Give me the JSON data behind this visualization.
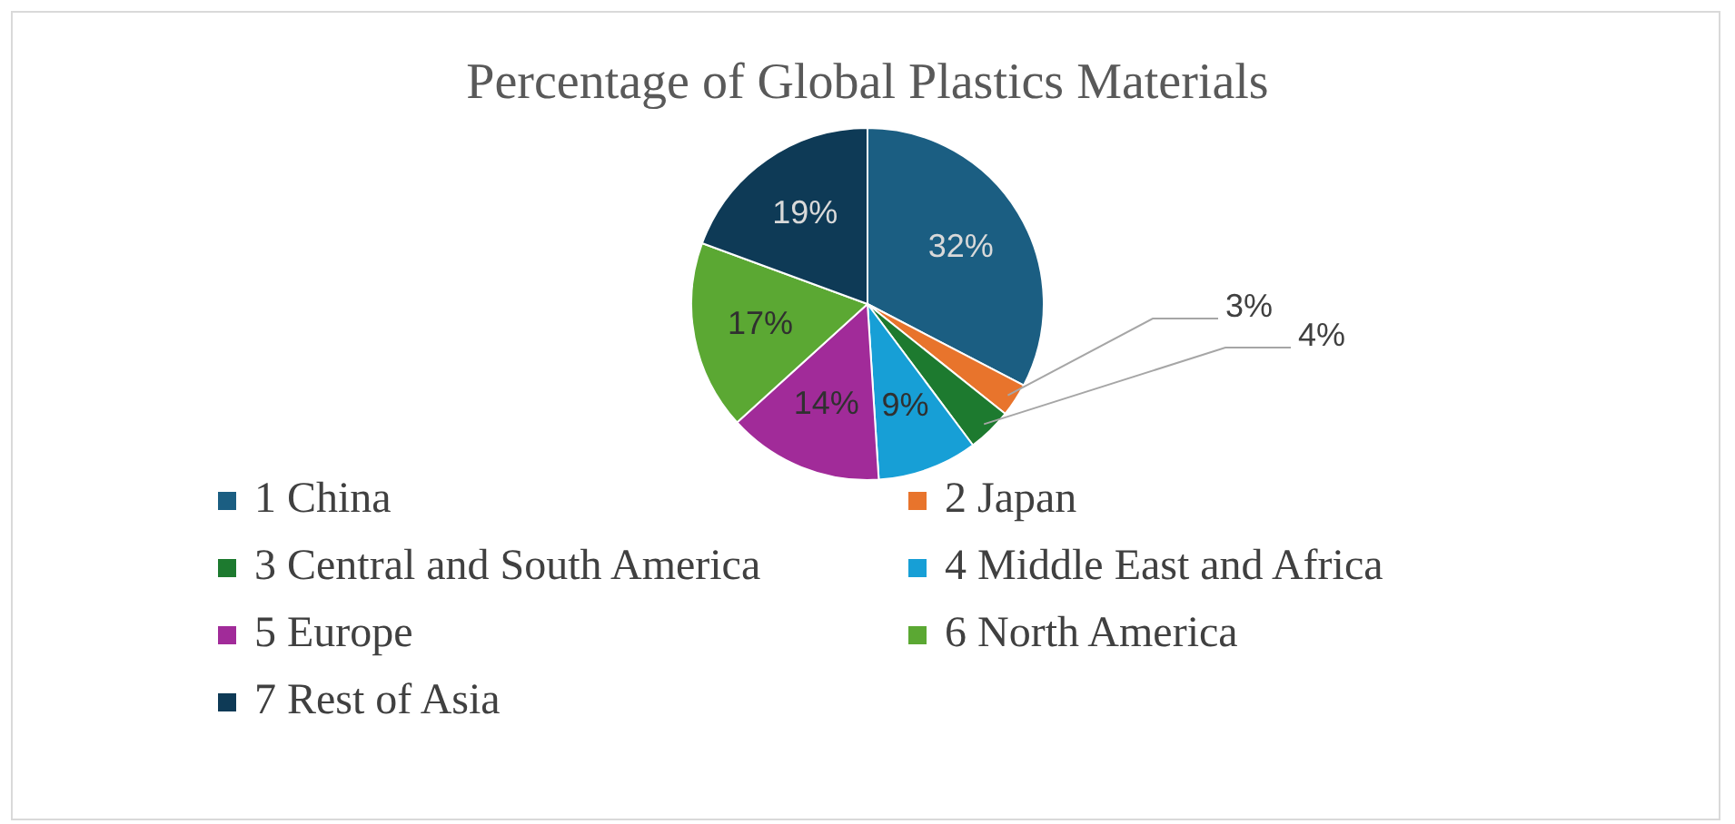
{
  "chart_data": {
    "type": "pie",
    "title": "Percentage of Global Plastics Materials",
    "categories": [
      "1 China",
      "2 Japan",
      "3 Central and South America",
      "4 Middle East and Africa",
      "5 Europe",
      "6 North America",
      "7 Rest of Asia"
    ],
    "values": [
      32,
      3,
      4,
      9,
      14,
      17,
      19
    ],
    "colors": [
      "#1b5e82",
      "#e8742c",
      "#1d7a2f",
      "#179fd6",
      "#a12b99",
      "#5ba833",
      "#0e3a56"
    ],
    "value_labels": [
      "32%",
      "3%",
      "4%",
      "9%",
      "14%",
      "17%",
      "19%"
    ],
    "legend": "bottom"
  }
}
